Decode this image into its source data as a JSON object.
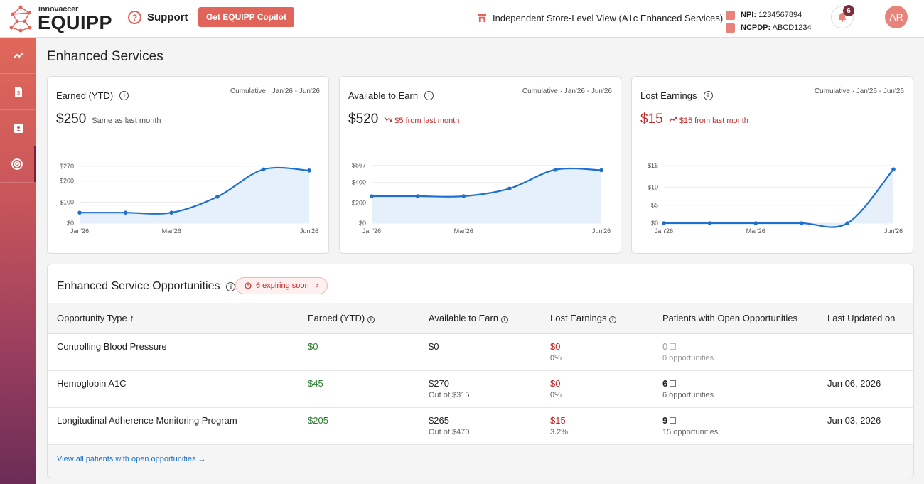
{
  "app": {
    "brand_small": "innovaccer",
    "brand_big": "EQUIPP",
    "support_label": "Support",
    "copilot_label": "Get EQUIPP Copilot",
    "store_view": "Independent Store-Level View (A1c Enhanced Services)",
    "npi_label": "NPI:",
    "npi_value": "1234567894",
    "ncpdp_label": "NCPDP:",
    "ncpdp_value": "ABCD1234",
    "notification_count": "6",
    "avatar_initials": "AR"
  },
  "page": {
    "title": "Enhanced Services"
  },
  "cards": [
    {
      "title": "Earned (YTD)",
      "range": "Cumulative · Jan'26 - Jun'26",
      "value": "$250",
      "delta": "Same as last month"
    },
    {
      "title": "Available to Earn",
      "range": "Cumulative · Jan'26 - Jun'26",
      "value": "$520",
      "delta": "$5 from last month"
    },
    {
      "title": "Lost Earnings",
      "range": "Cumulative · Jan'26 - Jun'26",
      "value": "$15",
      "delta": "$15 from last month"
    }
  ],
  "chart_data": [
    {
      "type": "area",
      "x": [
        "Jan'26",
        "Feb'26",
        "Mar'26",
        "Apr'26",
        "May'26",
        "Jun'26"
      ],
      "x_tick_labels": [
        "Jan'26",
        "Mar'26",
        "Jun'26"
      ],
      "values": [
        50,
        50,
        50,
        125,
        255,
        250
      ],
      "y_ticks": [
        "$0",
        "$100",
        "$200",
        "$270"
      ],
      "ylim": [
        0,
        290
      ],
      "color": "#1f6fd1"
    },
    {
      "type": "area",
      "x": [
        "Jan'26",
        "Feb'26",
        "Mar'26",
        "Apr'26",
        "May'26",
        "Jun'26"
      ],
      "x_tick_labels": [
        "Jan'26",
        "Mar'26",
        "Jun'26"
      ],
      "values": [
        265,
        265,
        265,
        340,
        525,
        520
      ],
      "y_ticks": [
        "$0",
        "$200",
        "$400",
        "$567"
      ],
      "ylim": [
        0,
        600
      ],
      "color": "#1f6fd1"
    },
    {
      "type": "area",
      "x": [
        "Jan'26",
        "Feb'26",
        "Mar'26",
        "Apr'26",
        "May'26",
        "Jun'26"
      ],
      "x_tick_labels": [
        "Jan'26",
        "Mar'26",
        "Jun'26"
      ],
      "values": [
        0,
        0,
        0,
        0,
        0,
        15
      ],
      "y_ticks": [
        "$0",
        "$5",
        "$10",
        "$16"
      ],
      "ylim": [
        0,
        17
      ],
      "color": "#1f6fd1"
    }
  ],
  "table": {
    "title": "Enhanced Service Opportunities",
    "expiring_label": "6 expiring soon",
    "headers": [
      "Opportunity Type",
      "Earned (YTD)",
      "Available to Earn",
      "Lost Earnings",
      "Patients with Open Opportunities",
      "Last Updated on"
    ],
    "sort_arrow": "↑",
    "rows": [
      {
        "type": "Controlling Blood Pressure",
        "earned": "$0",
        "available": "$0",
        "available_sub": "",
        "lost": "$0",
        "lost_pct": "0%",
        "patients": "0",
        "opps": "0 opportunities",
        "updated": ""
      },
      {
        "type": "Hemoglobin A1C",
        "earned": "$45",
        "available": "$270",
        "available_sub": "Out of $315",
        "lost": "$0",
        "lost_pct": "0%",
        "patients": "6",
        "opps": "6 opportunities",
        "updated": "Jun 06, 2026"
      },
      {
        "type": "Longitudinal Adherence Monitoring Program",
        "earned": "$205",
        "available": "$265",
        "available_sub": "Out of $470",
        "lost": "$15",
        "lost_pct": "3.2%",
        "patients": "9",
        "opps": "15 opportunities",
        "updated": "Jun 03, 2026"
      }
    ],
    "view_all": "View all patients with open opportunities →"
  }
}
